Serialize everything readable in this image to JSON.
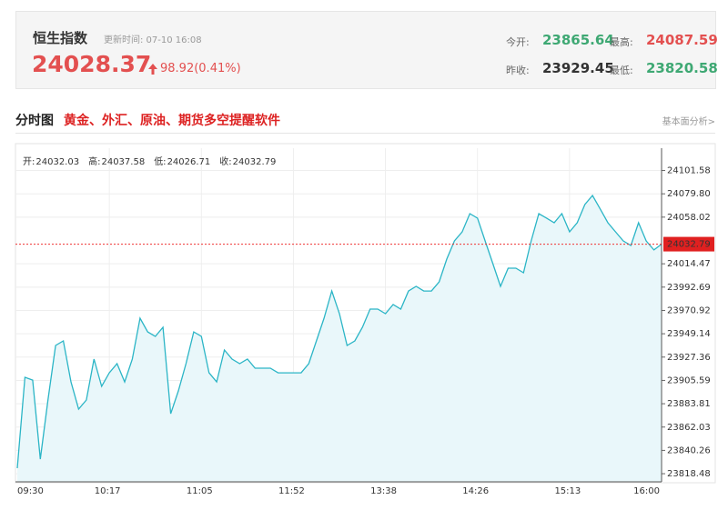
{
  "header": {
    "name": "恒生指数",
    "update": "更新时间: 07-10 16:08",
    "price": "24028.37",
    "change": "98.92(0.41%)",
    "stats": [
      {
        "label": "今开:",
        "value": "23865.64",
        "color": "#3ea873"
      },
      {
        "label": "最高:",
        "value": "24087.59",
        "color": "#e35050"
      },
      {
        "label": "昨收:",
        "value": "23929.45",
        "color": "#333333"
      },
      {
        "label": "最低:",
        "value": "23820.58",
        "color": "#3ea873"
      }
    ]
  },
  "section": {
    "title": "分时图",
    "ad": "黄金、外汇、原油、期货多空提醒软件",
    "link": "基本面分析>"
  },
  "chart_data": {
    "type": "line",
    "ohlc": [
      {
        "label": "开:",
        "value": "24032.03"
      },
      {
        "label": "高:",
        "value": "24037.58"
      },
      {
        "label": "低:",
        "value": "24026.71"
      },
      {
        "label": "收:",
        "value": "24032.79"
      }
    ],
    "categories": [
      "09:30",
      null,
      null,
      null,
      null,
      null,
      null,
      null,
      null,
      null,
      null,
      null,
      "10:17",
      null,
      null,
      null,
      null,
      null,
      null,
      null,
      null,
      null,
      null,
      null,
      "11:05",
      null,
      null,
      null,
      null,
      null,
      null,
      null,
      null,
      null,
      null,
      null,
      "11:52",
      null,
      null,
      null,
      null,
      null,
      null,
      null,
      null,
      null,
      null,
      null,
      "13:38",
      null,
      null,
      null,
      null,
      null,
      null,
      null,
      null,
      null,
      null,
      null,
      "14:26",
      null,
      null,
      null,
      null,
      null,
      null,
      null,
      null,
      null,
      null,
      null,
      "15:13",
      null,
      null,
      null,
      null,
      null,
      null,
      null,
      null,
      null,
      null,
      null,
      "16:00"
    ],
    "series": [
      {
        "color": "#2bb5c6",
        "values": [
          23823.6,
          23908.5,
          23905.9,
          23832.1,
          23887.3,
          23938.2,
          23942.5,
          23904.2,
          23878.8,
          23887.3,
          23925.5,
          23900.0,
          23912.7,
          23921.2,
          23904.2,
          23925.5,
          23963.7,
          23950.9,
          23946.7,
          23955.2,
          23874.5,
          23895.8,
          23921.2,
          23950.9,
          23946.7,
          23912.7,
          23904.2,
          23934.0,
          23925.5,
          23921.2,
          23925.5,
          23917.0,
          23917.0,
          23917.0,
          23912.7,
          23912.7,
          23912.7,
          23912.7,
          23921.2,
          23942.5,
          23963.7,
          23989.1,
          23967.9,
          23938.2,
          23942.5,
          23955.2,
          23972.2,
          23972.2,
          23967.9,
          23976.4,
          23972.2,
          23989.1,
          23993.4,
          23989.1,
          23989.1,
          23997.6,
          24018.9,
          24035.8,
          24044.3,
          24061.3,
          24057.1,
          24035.8,
          24014.6,
          23993.4,
          24010.4,
          24010.4,
          24006.1,
          24035.8,
          24061.3,
          24057.1,
          24052.8,
          24061.3,
          24044.3,
          24052.8,
          24069.8,
          24078.3,
          24065.6,
          24052.8,
          24044.3,
          24035.8,
          24031.6,
          24052.8,
          24035.8,
          24027.4,
          24032.79
        ]
      }
    ],
    "last_price": 24032.79,
    "ylim": [
      23810.9,
      24122.4
    ],
    "yticks": [
      24101.58,
      {
        "value": 24079.8,
        "label": "24079.80"
      },
      24058.02,
      24014.47,
      23992.69,
      23970.92,
      23949.14,
      23927.36,
      23905.59,
      23883.81,
      23862.03,
      23840.26,
      23818.48
    ],
    "grid": true
  }
}
